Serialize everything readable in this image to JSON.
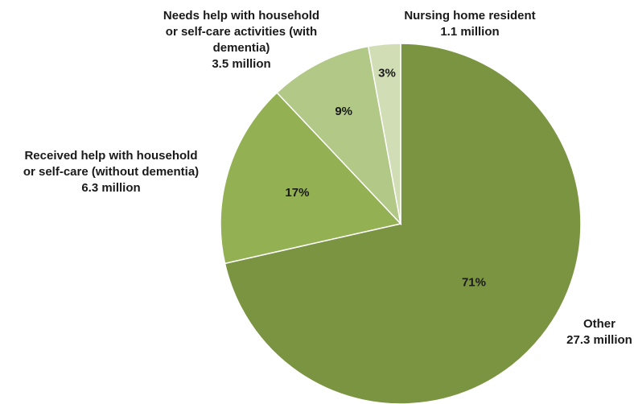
{
  "chart_data": {
    "type": "pie",
    "start_angle_deg": 0,
    "direction": "clockwise",
    "slices": [
      {
        "label_lines": [
          "Other",
          "27.3 million"
        ],
        "value": 27.3,
        "percent_label": "71%",
        "color": "#7a9442"
      },
      {
        "label_lines": [
          "Received help with household",
          "or self-care (without dementia)",
          "6.3 million"
        ],
        "value": 6.3,
        "percent_label": "17%",
        "color": "#93b052"
      },
      {
        "label_lines": [
          "Needs help with household",
          "or self-care activities (with",
          "dementia)",
          "3.5 million"
        ],
        "value": 3.5,
        "percent_label": "9%",
        "color": "#b1c886"
      },
      {
        "label_lines": [
          "Nursing home resident",
          "1.1 million"
        ],
        "value": 1.1,
        "percent_label": "3%",
        "color": "#d0ddb5"
      }
    ]
  }
}
